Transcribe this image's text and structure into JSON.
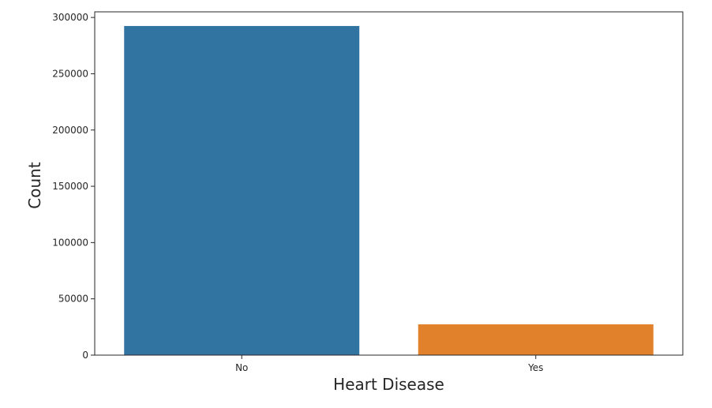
{
  "chart_data": {
    "type": "bar",
    "xlabel": "Heart Disease",
    "ylabel": "Count",
    "categories": [
      "No",
      "Yes"
    ],
    "values": [
      292422,
      27373
    ],
    "colors": [
      "#3274a1",
      "#e1812c"
    ],
    "ylim": [
      0,
      305000
    ],
    "yticks": [
      0,
      50000,
      100000,
      150000,
      200000,
      250000,
      300000
    ],
    "ytick_labels": [
      "0",
      "50000",
      "100000",
      "150000",
      "200000",
      "250000",
      "300000"
    ],
    "grid": false,
    "legend": "none"
  }
}
